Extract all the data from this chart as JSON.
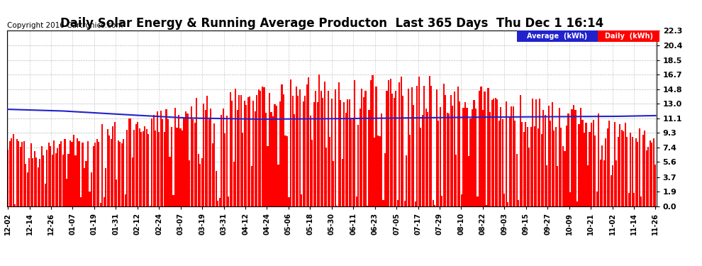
{
  "title": "Daily Solar Energy & Running Average Producton  Last 365 Days  Thu Dec 1 16:14",
  "copyright": "Copyright 2016 Cartronics.com",
  "yticks": [
    0.0,
    1.9,
    3.7,
    5.6,
    7.4,
    9.3,
    11.1,
    13.0,
    14.8,
    16.7,
    18.5,
    20.4,
    22.3
  ],
  "ylim": [
    0.0,
    22.3
  ],
  "bar_color": "#ff0000",
  "line_color": "#2222cc",
  "background_color": "#ffffff",
  "plot_bg_color": "#ffffff",
  "grid_color": "#aaaaaa",
  "legend_avg_color": "#2222cc",
  "legend_daily_color": "#ff0000",
  "legend_text_color": "#ffffff",
  "title_fontsize": 12,
  "copyright_fontsize": 7.5,
  "n_days": 365,
  "xtick_labels": [
    "12-02",
    "12-14",
    "12-26",
    "01-07",
    "01-19",
    "01-31",
    "02-12",
    "02-24",
    "03-07",
    "03-19",
    "03-31",
    "04-12",
    "04-24",
    "05-06",
    "05-18",
    "05-30",
    "06-11",
    "06-23",
    "07-05",
    "07-17",
    "07-29",
    "08-10",
    "08-22",
    "09-03",
    "09-15",
    "09-27",
    "10-09",
    "10-21",
    "11-02",
    "11-14",
    "11-26"
  ],
  "avg_line_points_x": [
    0,
    30,
    60,
    100,
    140,
    180,
    220,
    260,
    300,
    340,
    364
  ],
  "avg_line_points_y": [
    12.3,
    12.1,
    11.7,
    11.2,
    11.05,
    11.1,
    11.2,
    11.3,
    11.35,
    11.4,
    11.5
  ]
}
